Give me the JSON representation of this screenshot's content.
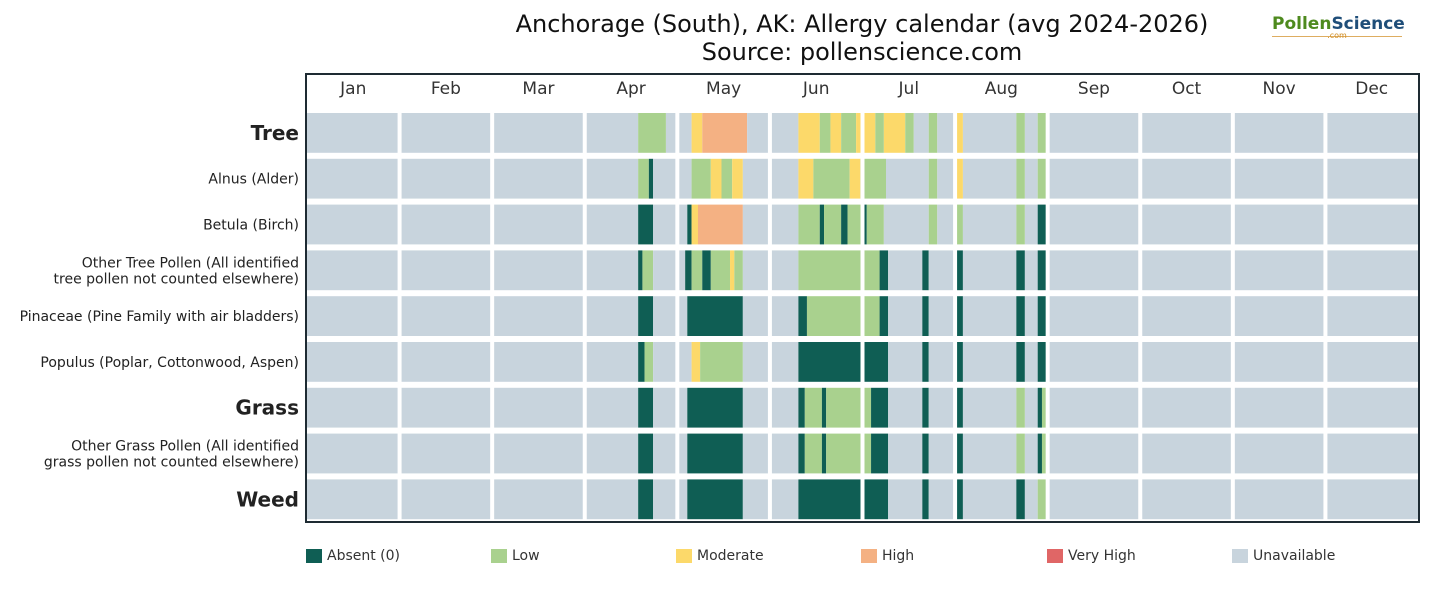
{
  "title_line1": "Anchorage (South), AK: Allergy calendar (avg 2024-2026)",
  "title_line2": "Source: pollenscience.com",
  "logo": {
    "part1": "Pollen",
    "part2": "Science",
    "sub": ".com"
  },
  "colors": {
    "A": "#0f5e54",
    "L": "#a9d18e",
    "M": "#fcd96a",
    "H": "#f4b183",
    "V": "#e06666",
    "U": "#c8d4dd",
    "frame": "#1e2b33"
  },
  "legend": [
    {
      "key": "A",
      "label": "Absent (0)"
    },
    {
      "key": "L",
      "label": "Low"
    },
    {
      "key": "M",
      "label": "Moderate"
    },
    {
      "key": "H",
      "label": "High"
    },
    {
      "key": "V",
      "label": "Very High"
    },
    {
      "key": "U",
      "label": "Unavailable"
    }
  ],
  "chart_data": {
    "type": "heatmap",
    "x_unit": "week of year (1-52)",
    "months": [
      "Jan",
      "Feb",
      "Mar",
      "Apr",
      "May",
      "Jun",
      "Jul",
      "Aug",
      "Sep",
      "Oct",
      "Nov",
      "Dec"
    ],
    "rows": [
      {
        "label": "Tree",
        "heading": true,
        "segments": [
          [
            0,
            15.5,
            "U"
          ],
          [
            15.5,
            16.8,
            "L"
          ],
          [
            16.8,
            18.0,
            "U"
          ],
          [
            18.0,
            18.5,
            "M"
          ],
          [
            18.5,
            20.6,
            "H"
          ],
          [
            20.6,
            23.0,
            "U"
          ],
          [
            23.0,
            24.0,
            "M"
          ],
          [
            24.0,
            24.5,
            "L"
          ],
          [
            24.5,
            25.0,
            "M"
          ],
          [
            25.0,
            25.7,
            "L"
          ],
          [
            25.7,
            26.6,
            "M"
          ],
          [
            26.6,
            27.0,
            "L"
          ],
          [
            27.0,
            28.0,
            "M"
          ],
          [
            28.0,
            28.4,
            "L"
          ],
          [
            28.4,
            29.1,
            "U"
          ],
          [
            29.1,
            29.5,
            "L"
          ],
          [
            29.5,
            30.4,
            "U"
          ],
          [
            30.4,
            30.7,
            "M"
          ],
          [
            30.7,
            33.2,
            "U"
          ],
          [
            33.2,
            33.6,
            "L"
          ],
          [
            33.6,
            34.2,
            "U"
          ],
          [
            34.2,
            34.7,
            "L"
          ],
          [
            34.7,
            52,
            "U"
          ]
        ]
      },
      {
        "label": "Alnus (Alder)",
        "heading": false,
        "segments": [
          [
            0,
            15.5,
            "U"
          ],
          [
            15.5,
            16.0,
            "L"
          ],
          [
            16.0,
            16.2,
            "A"
          ],
          [
            16.2,
            18.0,
            "U"
          ],
          [
            18.0,
            18.9,
            "L"
          ],
          [
            18.9,
            19.4,
            "M"
          ],
          [
            19.4,
            19.9,
            "L"
          ],
          [
            19.9,
            20.4,
            "M"
          ],
          [
            20.4,
            23.0,
            "U"
          ],
          [
            23.0,
            23.7,
            "M"
          ],
          [
            23.7,
            25.4,
            "L"
          ],
          [
            25.4,
            25.9,
            "M"
          ],
          [
            25.9,
            27.1,
            "L"
          ],
          [
            27.1,
            29.1,
            "U"
          ],
          [
            29.1,
            29.5,
            "L"
          ],
          [
            29.5,
            30.4,
            "U"
          ],
          [
            30.4,
            30.7,
            "M"
          ],
          [
            30.7,
            33.2,
            "U"
          ],
          [
            33.2,
            33.6,
            "L"
          ],
          [
            33.6,
            34.2,
            "U"
          ],
          [
            34.2,
            34.7,
            "L"
          ],
          [
            34.7,
            52,
            "U"
          ]
        ]
      },
      {
        "label": "Betula (Birch)",
        "heading": false,
        "segments": [
          [
            0,
            15.5,
            "U"
          ],
          [
            15.5,
            16.2,
            "A"
          ],
          [
            16.2,
            17.8,
            "U"
          ],
          [
            17.8,
            18.0,
            "A"
          ],
          [
            18.0,
            18.3,
            "M"
          ],
          [
            18.3,
            20.4,
            "H"
          ],
          [
            20.4,
            23.0,
            "U"
          ],
          [
            23.0,
            24.0,
            "L"
          ],
          [
            24.0,
            24.2,
            "A"
          ],
          [
            24.2,
            25.0,
            "L"
          ],
          [
            25.0,
            25.3,
            "A"
          ],
          [
            25.3,
            26.0,
            "L"
          ],
          [
            26.0,
            26.2,
            "A"
          ],
          [
            26.2,
            27.0,
            "L"
          ],
          [
            27.0,
            29.1,
            "U"
          ],
          [
            29.1,
            29.5,
            "L"
          ],
          [
            29.5,
            30.4,
            "U"
          ],
          [
            30.4,
            30.7,
            "L"
          ],
          [
            30.7,
            33.2,
            "U"
          ],
          [
            33.2,
            33.6,
            "L"
          ],
          [
            33.6,
            34.2,
            "U"
          ],
          [
            34.2,
            34.7,
            "A"
          ],
          [
            34.7,
            52,
            "U"
          ]
        ]
      },
      {
        "label": "Other Tree Pollen (All identified tree pollen not counted elsewhere)",
        "heading": false,
        "segments": [
          [
            0,
            15.5,
            "U"
          ],
          [
            15.5,
            15.7,
            "A"
          ],
          [
            15.7,
            16.2,
            "L"
          ],
          [
            16.2,
            17.7,
            "U"
          ],
          [
            17.7,
            18.0,
            "A"
          ],
          [
            18.0,
            18.5,
            "L"
          ],
          [
            18.5,
            18.9,
            "A"
          ],
          [
            18.9,
            19.8,
            "L"
          ],
          [
            19.8,
            20.0,
            "M"
          ],
          [
            20.0,
            20.4,
            "L"
          ],
          [
            20.4,
            23.0,
            "U"
          ],
          [
            23.0,
            26.8,
            "L"
          ],
          [
            26.8,
            27.2,
            "A"
          ],
          [
            27.2,
            28.8,
            "U"
          ],
          [
            28.8,
            29.1,
            "A"
          ],
          [
            29.1,
            30.4,
            "U"
          ],
          [
            30.4,
            30.7,
            "A"
          ],
          [
            30.7,
            33.2,
            "U"
          ],
          [
            33.2,
            33.6,
            "A"
          ],
          [
            33.6,
            34.2,
            "U"
          ],
          [
            34.2,
            34.7,
            "A"
          ],
          [
            34.7,
            52,
            "U"
          ]
        ]
      },
      {
        "label": "Pinaceae (Pine Family with air bladders)",
        "heading": false,
        "segments": [
          [
            0,
            15.5,
            "U"
          ],
          [
            15.5,
            16.2,
            "A"
          ],
          [
            16.2,
            17.8,
            "U"
          ],
          [
            17.8,
            20.4,
            "A"
          ],
          [
            20.4,
            23.0,
            "U"
          ],
          [
            23.0,
            23.4,
            "A"
          ],
          [
            23.4,
            26.8,
            "L"
          ],
          [
            26.8,
            27.2,
            "A"
          ],
          [
            27.2,
            28.8,
            "U"
          ],
          [
            28.8,
            29.1,
            "A"
          ],
          [
            29.1,
            30.4,
            "U"
          ],
          [
            30.4,
            30.7,
            "A"
          ],
          [
            30.7,
            33.2,
            "U"
          ],
          [
            33.2,
            33.6,
            "A"
          ],
          [
            33.6,
            34.2,
            "U"
          ],
          [
            34.2,
            34.7,
            "A"
          ],
          [
            34.7,
            52,
            "U"
          ]
        ]
      },
      {
        "label": "Populus (Poplar, Cottonwood, Aspen)",
        "heading": false,
        "segments": [
          [
            0,
            15.5,
            "U"
          ],
          [
            15.5,
            15.8,
            "A"
          ],
          [
            15.8,
            16.2,
            "L"
          ],
          [
            16.2,
            18.0,
            "U"
          ],
          [
            18.0,
            18.4,
            "M"
          ],
          [
            18.4,
            20.4,
            "L"
          ],
          [
            20.4,
            23.0,
            "U"
          ],
          [
            23.0,
            27.2,
            "A"
          ],
          [
            27.2,
            28.8,
            "U"
          ],
          [
            28.8,
            29.1,
            "A"
          ],
          [
            29.1,
            30.4,
            "U"
          ],
          [
            30.4,
            30.7,
            "A"
          ],
          [
            30.7,
            33.2,
            "U"
          ],
          [
            33.2,
            33.6,
            "A"
          ],
          [
            33.6,
            34.2,
            "U"
          ],
          [
            34.2,
            34.7,
            "A"
          ],
          [
            34.7,
            52,
            "U"
          ]
        ]
      },
      {
        "label": "Grass",
        "heading": true,
        "segments": [
          [
            0,
            15.5,
            "U"
          ],
          [
            15.5,
            16.2,
            "A"
          ],
          [
            16.2,
            17.8,
            "U"
          ],
          [
            17.8,
            20.4,
            "A"
          ],
          [
            20.4,
            23.0,
            "U"
          ],
          [
            23.0,
            23.3,
            "A"
          ],
          [
            23.3,
            24.1,
            "L"
          ],
          [
            24.1,
            24.3,
            "A"
          ],
          [
            24.3,
            26.4,
            "L"
          ],
          [
            26.4,
            27.2,
            "A"
          ],
          [
            27.2,
            28.8,
            "U"
          ],
          [
            28.8,
            29.1,
            "A"
          ],
          [
            29.1,
            30.4,
            "U"
          ],
          [
            30.4,
            30.7,
            "A"
          ],
          [
            30.7,
            33.2,
            "U"
          ],
          [
            33.2,
            33.6,
            "L"
          ],
          [
            33.6,
            34.2,
            "U"
          ],
          [
            34.2,
            34.4,
            "A"
          ],
          [
            34.4,
            34.7,
            "L"
          ],
          [
            34.7,
            52,
            "U"
          ]
        ]
      },
      {
        "label": "Other Grass Pollen (All identified grass pollen not counted elsewhere)",
        "heading": false,
        "segments": [
          [
            0,
            15.5,
            "U"
          ],
          [
            15.5,
            16.2,
            "A"
          ],
          [
            16.2,
            17.8,
            "U"
          ],
          [
            17.8,
            20.4,
            "A"
          ],
          [
            20.4,
            23.0,
            "U"
          ],
          [
            23.0,
            23.3,
            "A"
          ],
          [
            23.3,
            24.1,
            "L"
          ],
          [
            24.1,
            24.3,
            "A"
          ],
          [
            24.3,
            26.4,
            "L"
          ],
          [
            26.4,
            27.2,
            "A"
          ],
          [
            27.2,
            28.8,
            "U"
          ],
          [
            28.8,
            29.1,
            "A"
          ],
          [
            29.1,
            30.4,
            "U"
          ],
          [
            30.4,
            30.7,
            "A"
          ],
          [
            30.7,
            33.2,
            "U"
          ],
          [
            33.2,
            33.6,
            "L"
          ],
          [
            33.6,
            34.2,
            "U"
          ],
          [
            34.2,
            34.4,
            "A"
          ],
          [
            34.4,
            34.7,
            "L"
          ],
          [
            34.7,
            52,
            "U"
          ]
        ]
      },
      {
        "label": "Weed",
        "heading": true,
        "segments": [
          [
            0,
            15.5,
            "U"
          ],
          [
            15.5,
            16.2,
            "A"
          ],
          [
            16.2,
            17.8,
            "U"
          ],
          [
            17.8,
            20.4,
            "A"
          ],
          [
            20.4,
            23.0,
            "U"
          ],
          [
            23.0,
            27.2,
            "A"
          ],
          [
            27.2,
            28.8,
            "U"
          ],
          [
            28.8,
            29.1,
            "A"
          ],
          [
            29.1,
            30.4,
            "U"
          ],
          [
            30.4,
            30.7,
            "A"
          ],
          [
            30.7,
            33.2,
            "U"
          ],
          [
            33.2,
            33.6,
            "A"
          ],
          [
            33.6,
            34.2,
            "U"
          ],
          [
            34.2,
            34.7,
            "L"
          ],
          [
            34.7,
            52,
            "U"
          ]
        ]
      }
    ]
  }
}
